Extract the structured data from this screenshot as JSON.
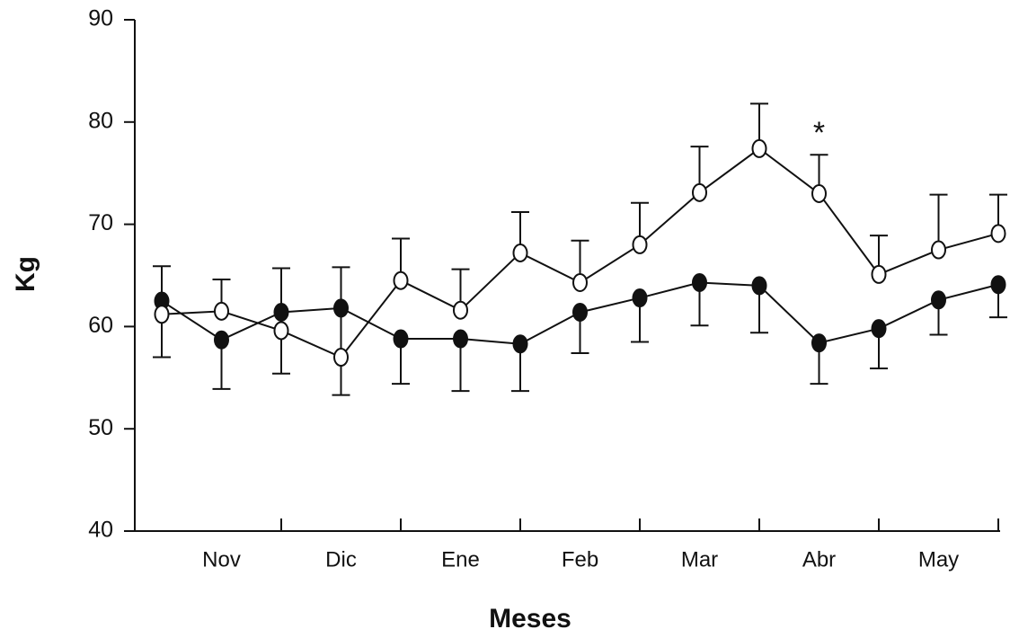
{
  "chart_data": {
    "type": "line",
    "x_label": "Meses",
    "y_label": "Kg",
    "annotation": "*",
    "categories": [
      null,
      "Nov",
      null,
      "Dic",
      null,
      "Ene",
      null,
      "Feb",
      null,
      "Mar",
      null,
      "Abr",
      null,
      "May",
      null
    ],
    "ylim": [
      40,
      90
    ],
    "yticks": [
      40,
      50,
      60,
      70,
      80,
      90
    ],
    "grid": false,
    "series": [
      {
        "color": "#111111",
        "marker": "filled",
        "values": [
          62.5,
          58.7,
          61.4,
          61.8,
          58.8,
          58.8,
          58.3,
          61.4,
          62.8,
          64.3,
          64.0,
          58.4,
          59.8,
          62.6,
          64.1
        ],
        "errors": [
          5.5,
          4.8,
          6.0,
          8.5,
          4.4,
          5.1,
          4.6,
          4.0,
          4.3,
          4.2,
          4.6,
          4.0,
          3.9,
          3.4,
          3.2
        ]
      },
      {
        "color": "#111111",
        "marker": "open",
        "values": [
          61.2,
          61.5,
          59.6,
          57.0,
          64.5,
          61.6,
          67.2,
          64.3,
          68.0,
          73.1,
          77.4,
          73.0,
          65.1,
          67.5,
          69.1
        ],
        "errors": [
          4.7,
          3.1,
          6.1,
          8.8,
          4.1,
          4.0,
          4.0,
          4.1,
          4.1,
          4.5,
          4.4,
          3.8,
          3.8,
          5.4,
          3.8
        ]
      }
    ]
  }
}
